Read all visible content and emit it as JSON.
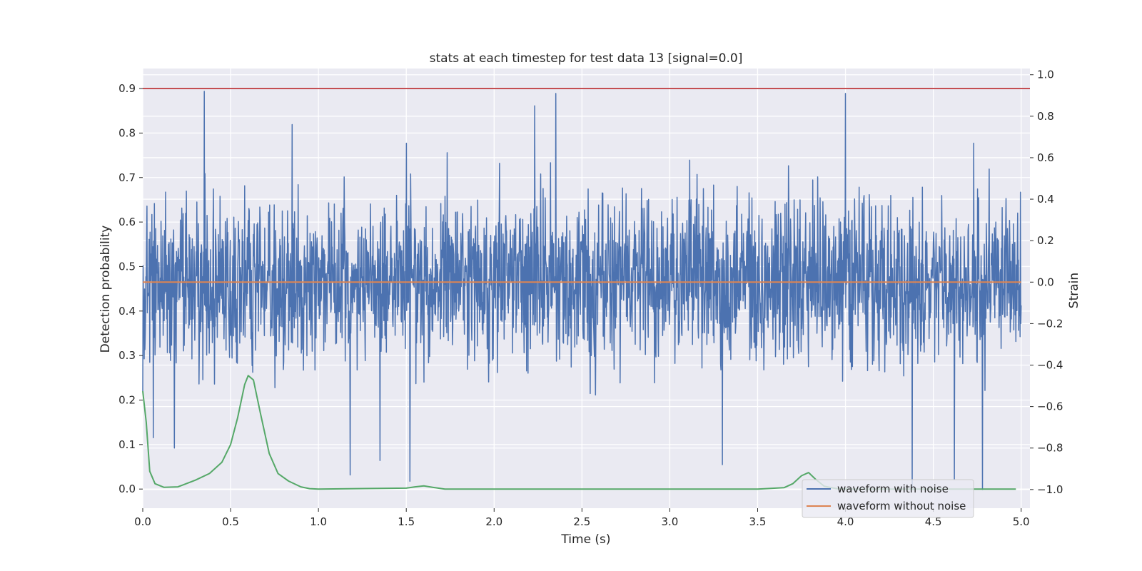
{
  "chart_data": {
    "type": "line",
    "title": "stats at each timestep for test data 13 [signal=0.0]",
    "xlabel": "Time (s)",
    "ylabel": "Detection probability",
    "y2label": "Strain",
    "xlim": [
      0.0,
      5.05
    ],
    "ylim": [
      -0.043,
      0.945
    ],
    "y2lim": [
      -1.09,
      1.03
    ],
    "xticks": [
      "0.0",
      "0.5",
      "1.0",
      "1.5",
      "2.0",
      "2.5",
      "3.0",
      "3.5",
      "4.0",
      "4.5",
      "5.0"
    ],
    "yticks": [
      "0.0",
      "0.1",
      "0.2",
      "0.3",
      "0.4",
      "0.5",
      "0.6",
      "0.7",
      "0.8",
      "0.9"
    ],
    "y2ticks": [
      "−1.0",
      "−0.8",
      "−0.6",
      "−0.4",
      "−0.2",
      "0.0",
      "0.2",
      "0.4",
      "0.6",
      "0.8",
      "1.0"
    ],
    "grid": true,
    "legend_position": "lower right",
    "threshold": {
      "y": 0.9,
      "color": "#c44e52"
    },
    "series": [
      {
        "name": "waveform with noise",
        "axis": "right",
        "color": "#4c72b0",
        "noise": {
          "x_start": 0.0,
          "x_end": 5.0,
          "samples": 2500,
          "std": 0.22,
          "seed": 13
        },
        "peaks_high": [
          [
            0.35,
            0.92
          ],
          [
            0.85,
            0.76
          ],
          [
            1.5,
            0.67
          ],
          [
            2.23,
            0.85
          ],
          [
            2.35,
            0.91
          ],
          [
            4.0,
            0.91
          ],
          [
            4.73,
            0.67
          ]
        ],
        "peaks_low": [
          [
            0.06,
            -0.75
          ],
          [
            0.18,
            -0.8
          ],
          [
            1.18,
            -0.93
          ],
          [
            1.35,
            -0.86
          ],
          [
            1.52,
            -0.96
          ],
          [
            3.3,
            -0.88
          ],
          [
            4.38,
            -1.0
          ],
          [
            4.62,
            -0.95
          ],
          [
            4.78,
            -1.0
          ]
        ]
      },
      {
        "name": "waveform without noise",
        "axis": "right",
        "color": "#dd8452",
        "values": [
          [
            0.0,
            0.0
          ],
          [
            5.0,
            0.0
          ]
        ]
      },
      {
        "name": "",
        "axis": "left",
        "color": "#55a868",
        "values": [
          [
            0.0,
            0.22
          ],
          [
            0.02,
            0.15
          ],
          [
            0.04,
            0.04
          ],
          [
            0.07,
            0.012
          ],
          [
            0.12,
            0.004
          ],
          [
            0.2,
            0.005
          ],
          [
            0.3,
            0.02
          ],
          [
            0.38,
            0.035
          ],
          [
            0.45,
            0.06
          ],
          [
            0.5,
            0.1
          ],
          [
            0.54,
            0.16
          ],
          [
            0.58,
            0.235
          ],
          [
            0.6,
            0.255
          ],
          [
            0.63,
            0.245
          ],
          [
            0.67,
            0.17
          ],
          [
            0.72,
            0.08
          ],
          [
            0.77,
            0.035
          ],
          [
            0.83,
            0.018
          ],
          [
            0.9,
            0.005
          ],
          [
            0.95,
            0.001
          ],
          [
            1.0,
            0.0
          ],
          [
            1.5,
            0.002
          ],
          [
            1.55,
            0.005
          ],
          [
            1.6,
            0.007
          ],
          [
            1.65,
            0.004
          ],
          [
            1.72,
            0.0
          ],
          [
            3.5,
            0.0
          ],
          [
            3.65,
            0.003
          ],
          [
            3.7,
            0.012
          ],
          [
            3.75,
            0.03
          ],
          [
            3.79,
            0.037
          ],
          [
            3.83,
            0.022
          ],
          [
            3.88,
            0.006
          ],
          [
            3.95,
            0.001
          ],
          [
            4.05,
            0.0
          ],
          [
            4.97,
            0.0
          ]
        ]
      }
    ]
  }
}
